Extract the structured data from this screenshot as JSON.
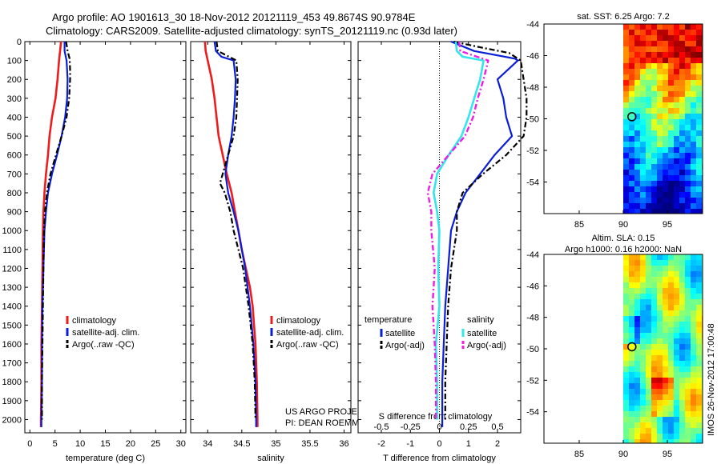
{
  "header": {
    "line1": "Argo profile: AO 1901613_30 18-Nov-2012 20121119_453 49.8674S 90.9784E",
    "line2": "Climatology: CARS2009. Satellite-adjusted climatology: synTS_20121119.nc (0.93d later)"
  },
  "colors": {
    "climatology": "#ee1c1c",
    "satellite": "#0a1ed8",
    "argo": "#000000",
    "sal_sat": "#32e6ec",
    "sal_argo": "#ee1ce6"
  },
  "chart_data": [
    {
      "type": "line",
      "id": "temperature",
      "xlabel": "temperature (deg C)",
      "xlim": [
        -1,
        31
      ],
      "xticks": [
        0,
        5,
        10,
        15,
        20,
        25,
        30
      ],
      "ylim": [
        0,
        2070
      ],
      "yticks": [
        0,
        100,
        200,
        300,
        400,
        500,
        600,
        700,
        800,
        900,
        1000,
        1100,
        1200,
        1300,
        1400,
        1500,
        1600,
        1700,
        1800,
        1900,
        2000
      ],
      "legend": [
        "climatology",
        "satellite-adj. clim.",
        "Argo(..raw -QC)"
      ],
      "series": [
        {
          "name": "climatology",
          "style": "climatology",
          "y": [
            0,
            50,
            100,
            200,
            300,
            400,
            500,
            600,
            700,
            800,
            900,
            1000,
            1200,
            1400,
            1600,
            1800,
            2000,
            2040
          ],
          "x": [
            6.2,
            6.0,
            5.8,
            5.5,
            5.1,
            4.4,
            3.9,
            3.6,
            3.2,
            2.9,
            2.7,
            2.6,
            2.5,
            2.4,
            2.3,
            2.3,
            2.2,
            2.2
          ]
        },
        {
          "name": "satellite-adj. clim.",
          "style": "satellite",
          "y": [
            0,
            50,
            100,
            200,
            300,
            400,
            500,
            600,
            700,
            800,
            900,
            1000,
            1200,
            1400,
            1600,
            1800,
            2000,
            2040
          ],
          "x": [
            6.9,
            6.9,
            7.3,
            7.5,
            7.4,
            7.0,
            6.3,
            5.4,
            4.4,
            3.6,
            3.2,
            2.9,
            2.7,
            2.5,
            2.4,
            2.4,
            2.3,
            2.3
          ]
        },
        {
          "name": "Argo(..raw -QC)",
          "style": "argo",
          "y": [
            0,
            50,
            90,
            150,
            200,
            300,
            400,
            500,
            600,
            700,
            800,
            900,
            1000,
            1200,
            1400,
            1600,
            1800,
            2000
          ],
          "x": [
            7.2,
            7.5,
            7.9,
            8.0,
            8.0,
            7.8,
            7.3,
            6.3,
            5.2,
            4.1,
            3.4,
            3.0,
            2.8,
            2.7,
            2.6,
            2.5,
            2.4,
            2.4
          ]
        }
      ]
    },
    {
      "type": "line",
      "id": "salinity",
      "xlabel": "salinity",
      "xlim": [
        33.75,
        36.1
      ],
      "xticks": [
        34,
        34.5,
        35,
        35.5,
        36
      ],
      "xticklabels": [
        "34",
        "34.5",
        "35",
        "35.5",
        "36"
      ],
      "ylim": [
        0,
        2070
      ],
      "legend": [
        "climatology",
        "satellite-adj. clim.",
        "Argo(..raw -QC)"
      ],
      "annotation": [
        "US ARGO PROJECT",
        "PI: DEAN ROEMMICH"
      ],
      "series": [
        {
          "name": "climatology",
          "style": "climatology",
          "y": [
            0,
            50,
            100,
            200,
            300,
            400,
            500,
            600,
            700,
            800,
            900,
            1000,
            1100,
            1200,
            1300,
            1400,
            1500,
            1600,
            1800,
            2000,
            2040
          ],
          "x": [
            33.96,
            33.97,
            34.0,
            34.06,
            34.1,
            34.13,
            34.16,
            34.22,
            34.28,
            34.35,
            34.4,
            34.45,
            34.5,
            34.56,
            34.62,
            34.66,
            34.68,
            34.7,
            34.72,
            34.73,
            34.73
          ]
        },
        {
          "name": "satellite-adj. clim.",
          "style": "satellite",
          "y": [
            0,
            50,
            80,
            100,
            200,
            300,
            400,
            500,
            600,
            700,
            800,
            900,
            1000,
            1200,
            1400,
            1600,
            1800,
            2000,
            2040
          ],
          "x": [
            34.1,
            34.12,
            34.2,
            34.38,
            34.41,
            34.4,
            34.38,
            34.35,
            34.3,
            34.26,
            34.3,
            34.38,
            34.45,
            34.55,
            34.62,
            34.67,
            34.7,
            34.71,
            34.71
          ]
        },
        {
          "name": "Argo(..raw -QC)",
          "style": "argo",
          "y": [
            0,
            50,
            100,
            200,
            300,
            400,
            500,
            600,
            700,
            750,
            800,
            900,
            1000,
            1100,
            1200,
            1400,
            1600,
            1800,
            2000
          ],
          "x": [
            34.13,
            34.15,
            34.42,
            34.44,
            34.43,
            34.42,
            34.38,
            34.3,
            34.22,
            34.18,
            34.25,
            34.33,
            34.38,
            34.45,
            34.52,
            34.6,
            34.66,
            34.69,
            34.7
          ]
        }
      ]
    },
    {
      "type": "line",
      "id": "differences",
      "xlabel": "T difference from climatology",
      "xlabel_top": "S difference from climatology",
      "xlim": [
        -2.8,
        2.8
      ],
      "xticks": [
        -2,
        -1,
        0,
        1,
        2
      ],
      "sticks": [
        -0.5,
        -0.25,
        0,
        0.25,
        0.5
      ],
      "sticklabels": [
        "-0.5",
        "-0.25",
        "0",
        "0.25",
        "0.5"
      ],
      "ylim": [
        0,
        2070
      ],
      "legend": {
        "temperature": [
          "satellite",
          "Argo(-adj)"
        ],
        "salinity": [
          "satellite",
          "Argo(-adj)"
        ],
        "temperature_title": "temperature",
        "salinity_title": "salinity"
      },
      "series": [
        {
          "name": "T satellite",
          "style": "satellite",
          "y": [
            0,
            50,
            90,
            100,
            200,
            300,
            400,
            500,
            600,
            700,
            800,
            900,
            1000,
            1200,
            1400,
            1600,
            1800,
            2000,
            2040
          ],
          "x": [
            0.4,
            1.2,
            2.6,
            2.7,
            2.0,
            2.2,
            2.3,
            2.5,
            1.9,
            1.4,
            0.9,
            0.6,
            0.4,
            0.3,
            0.2,
            0.15,
            0.1,
            0.1,
            0.1
          ]
        },
        {
          "name": "T Argo(-adj)",
          "style": "argo",
          "y": [
            0,
            30,
            60,
            100,
            200,
            300,
            400,
            500,
            600,
            700,
            800,
            900,
            1000,
            1200,
            1400,
            1600,
            1800,
            2000
          ],
          "x": [
            0.5,
            1.4,
            2.4,
            2.8,
            2.9,
            3.0,
            3.0,
            2.9,
            2.3,
            1.5,
            0.8,
            0.6,
            0.6,
            0.4,
            0.3,
            0.25,
            0.2,
            0.2
          ]
        },
        {
          "name": "S satellite",
          "style": "sal_sat",
          "y": [
            0,
            50,
            80,
            100,
            200,
            300,
            400,
            500,
            600,
            700,
            800,
            900,
            1000,
            1200,
            1400,
            1600,
            1800,
            2000
          ],
          "x": [
            0.14,
            0.15,
            0.2,
            0.38,
            0.35,
            0.3,
            0.25,
            0.19,
            0.08,
            -0.02,
            -0.05,
            -0.02,
            0.0,
            -0.01,
            0.0,
            -0.03,
            -0.02,
            -0.02
          ]
        },
        {
          "name": "S Argo(-adj)",
          "style": "sal_argo",
          "y": [
            0,
            50,
            100,
            200,
            300,
            400,
            500,
            600,
            700,
            800,
            900,
            1000,
            1200,
            1400,
            1600,
            1800,
            2000
          ],
          "x": [
            0.17,
            0.18,
            0.42,
            0.38,
            0.33,
            0.29,
            0.22,
            0.08,
            -0.06,
            -0.1,
            -0.07,
            -0.07,
            -0.04,
            -0.06,
            -0.04,
            -0.03,
            -0.03
          ]
        }
      ]
    },
    {
      "type": "heatmap",
      "id": "sst_map",
      "title": "sat. SST: 6.25  Argo: 7.2",
      "xlim": [
        81,
        99
      ],
      "ylim": [
        -56,
        -44
      ],
      "xticks": [
        85,
        90,
        95
      ],
      "yticks": [
        -44,
        -46,
        -48,
        -50,
        -52,
        -54
      ],
      "data_from_lon": 90,
      "float_position": {
        "lon": 90.98,
        "lat": -49.87
      }
    },
    {
      "type": "heatmap",
      "id": "sla_map",
      "title": "Altim. SLA: 0.15",
      "subtitle": "Argo h1000: 0.16  h2000: NaN",
      "xlim": [
        81,
        99
      ],
      "ylim": [
        -56,
        -44
      ],
      "xticks": [
        85,
        90,
        95
      ],
      "yticks": [
        -44,
        -46,
        -48,
        -50,
        -52,
        -54
      ],
      "data_from_lon": 90,
      "float_position": {
        "lon": 90.98,
        "lat": -49.87
      },
      "side_label": "IMOS 26-Nov-2012 17:00:48"
    }
  ]
}
